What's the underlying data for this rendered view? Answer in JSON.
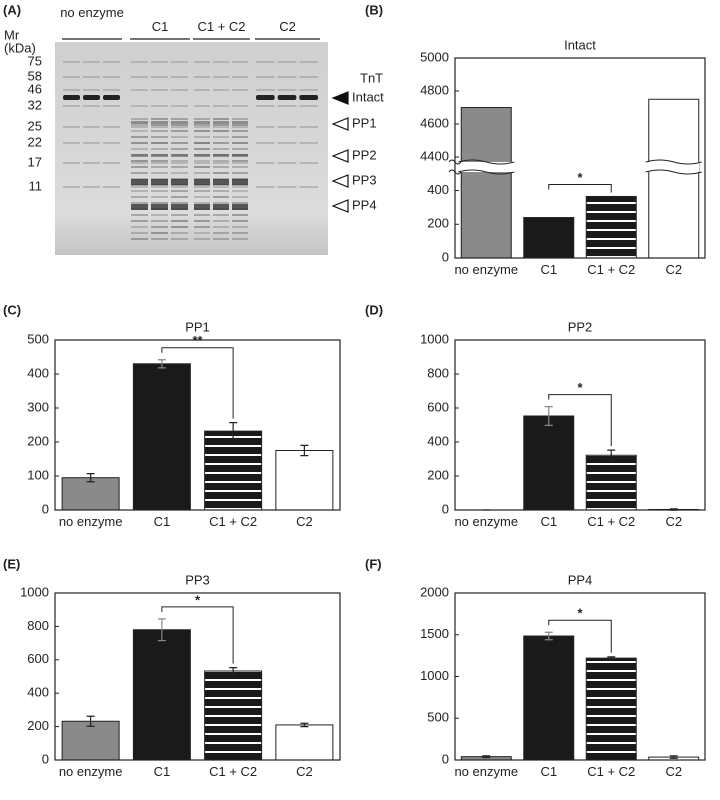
{
  "gel": {
    "panel": "(A)",
    "mr_label": [
      "Mr",
      "(kDa)"
    ],
    "lanes": [
      "no enzyme",
      "C1",
      "C1 + C2",
      "C2"
    ],
    "markers": [
      75,
      58,
      46,
      32,
      25,
      22,
      17,
      11
    ],
    "protein": "TnT",
    "bands": [
      "Intact",
      "PP1",
      "PP2",
      "PP3",
      "PP4"
    ]
  },
  "chart_data": [
    {
      "type": "bar",
      "panel": "(B)",
      "title": "Intact",
      "categories": [
        "no enzyme",
        "C1",
        "C1 + C2",
        "C2"
      ],
      "values": [
        4700,
        240,
        365,
        4750
      ],
      "colors": [
        "#8a8a8a",
        "#1a1a1a",
        "#1a1a1a",
        "#ffffff"
      ],
      "striped": [
        false,
        false,
        true,
        false
      ],
      "ylim": [
        0,
        5000
      ],
      "axis_break": [
        510,
        4370
      ],
      "yticks": [
        0,
        200,
        400,
        4400,
        4600,
        4800,
        5000
      ],
      "significance": {
        "between": [
          "C1",
          "C1 + C2"
        ],
        "label": "*"
      }
    },
    {
      "type": "bar",
      "panel": "(C)",
      "title": "PP1",
      "categories": [
        "no enzyme",
        "C1",
        "C1 + C2",
        "C2"
      ],
      "values": [
        95,
        430,
        232,
        175
      ],
      "errors": [
        12,
        12,
        25,
        15
      ],
      "colors": [
        "#8a8a8a",
        "#1a1a1a",
        "#1a1a1a",
        "#ffffff"
      ],
      "striped": [
        false,
        false,
        true,
        false
      ],
      "ylim": [
        0,
        500
      ],
      "yticks": [
        0,
        100,
        200,
        300,
        400,
        500
      ],
      "significance": {
        "between": [
          "C1",
          "C1 + C2"
        ],
        "label": "**"
      }
    },
    {
      "type": "bar",
      "panel": "(D)",
      "title": "PP2",
      "categories": [
        "no enzyme",
        "C1",
        "C1 + C2",
        "C2"
      ],
      "values": [
        0,
        553,
        322,
        3
      ],
      "errors": [
        0,
        55,
        30,
        4
      ],
      "colors": [
        "#8a8a8a",
        "#1a1a1a",
        "#1a1a1a",
        "#ffffff"
      ],
      "striped": [
        false,
        false,
        true,
        false
      ],
      "ylim": [
        0,
        1000
      ],
      "yticks": [
        0,
        200,
        400,
        600,
        800,
        1000
      ],
      "significance": {
        "between": [
          "C1",
          "C1 + C2"
        ],
        "label": "*"
      }
    },
    {
      "type": "bar",
      "panel": "(E)",
      "title": "PP3",
      "categories": [
        "no enzyme",
        "C1",
        "C1 + C2",
        "C2"
      ],
      "values": [
        232,
        780,
        533,
        210
      ],
      "errors": [
        30,
        65,
        20,
        10
      ],
      "colors": [
        "#8a8a8a",
        "#1a1a1a",
        "#1a1a1a",
        "#ffffff"
      ],
      "striped": [
        false,
        false,
        true,
        false
      ],
      "ylim": [
        0,
        1000
      ],
      "yticks": [
        0,
        200,
        400,
        600,
        800,
        1000
      ],
      "significance": {
        "between": [
          "C1",
          "C1 + C2"
        ],
        "label": "*"
      }
    },
    {
      "type": "bar",
      "panel": "(F)",
      "title": "PP4",
      "categories": [
        "no enzyme",
        "C1",
        "C1 + C2",
        "C2"
      ],
      "values": [
        40,
        1485,
        1220,
        35
      ],
      "errors": [
        10,
        45,
        15,
        15
      ],
      "colors": [
        "#8a8a8a",
        "#1a1a1a",
        "#1a1a1a",
        "#ffffff"
      ],
      "striped": [
        false,
        false,
        true,
        false
      ],
      "ylim": [
        0,
        2000
      ],
      "yticks": [
        0,
        500,
        1000,
        1500,
        2000
      ],
      "significance": {
        "between": [
          "C1",
          "C1 + C2"
        ],
        "label": "*"
      }
    }
  ]
}
